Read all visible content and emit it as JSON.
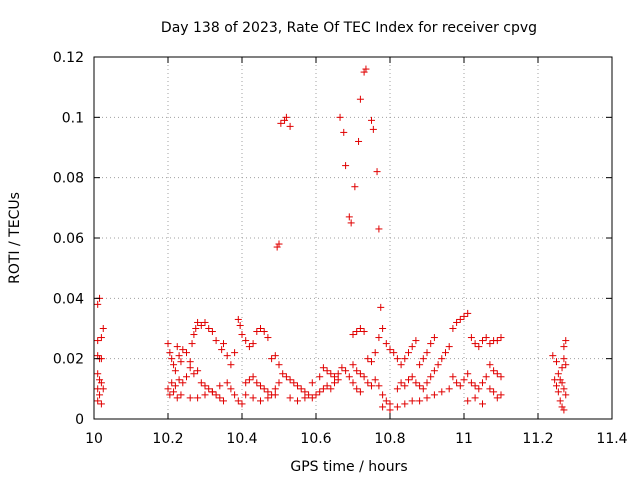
{
  "chart_data": {
    "type": "scatter",
    "title": "Day 138 of 2023, Rate Of TEC Index for receiver cpvg",
    "xlabel": "GPS time / hours",
    "ylabel": "ROTI / TECUs",
    "xlim": [
      10.0,
      11.4
    ],
    "ylim": [
      0.0,
      0.12
    ],
    "xticks": [
      "10",
      "10.2",
      "10.4",
      "10.6",
      "10.8",
      "11",
      "11.2",
      "11.4"
    ],
    "yticks": [
      "0",
      "0.02",
      "0.04",
      "0.06",
      "0.08",
      "0.1",
      "0.12"
    ],
    "grid": true,
    "marker": "+",
    "color": "#e00000",
    "points": [
      [
        10.01,
        0.038
      ],
      [
        10.015,
        0.04
      ],
      [
        10.01,
        0.026
      ],
      [
        10.02,
        0.027
      ],
      [
        10.025,
        0.03
      ],
      [
        10.01,
        0.021
      ],
      [
        10.015,
        0.02
      ],
      [
        10.02,
        0.02
      ],
      [
        10.01,
        0.015
      ],
      [
        10.015,
        0.013
      ],
      [
        10.02,
        0.012
      ],
      [
        10.01,
        0.01
      ],
      [
        10.025,
        0.01
      ],
      [
        10.015,
        0.008
      ],
      [
        10.01,
        0.006
      ],
      [
        10.02,
        0.005
      ],
      [
        10.2,
        0.025
      ],
      [
        10.205,
        0.022
      ],
      [
        10.21,
        0.02
      ],
      [
        10.215,
        0.018
      ],
      [
        10.22,
        0.016
      ],
      [
        10.225,
        0.024
      ],
      [
        10.23,
        0.021
      ],
      [
        10.235,
        0.019
      ],
      [
        10.24,
        0.023
      ],
      [
        10.25,
        0.022
      ],
      [
        10.2,
        0.01
      ],
      [
        10.21,
        0.012
      ],
      [
        10.22,
        0.011
      ],
      [
        10.23,
        0.013
      ],
      [
        10.24,
        0.012
      ],
      [
        10.25,
        0.014
      ],
      [
        10.205,
        0.008
      ],
      [
        10.215,
        0.009
      ],
      [
        10.225,
        0.007
      ],
      [
        10.235,
        0.008
      ],
      [
        10.26,
        0.017
      ],
      [
        10.265,
        0.025
      ],
      [
        10.27,
        0.028
      ],
      [
        10.275,
        0.03
      ],
      [
        10.28,
        0.032
      ],
      [
        10.29,
        0.031
      ],
      [
        10.3,
        0.032
      ],
      [
        10.31,
        0.03
      ],
      [
        10.32,
        0.029
      ],
      [
        10.33,
        0.026
      ],
      [
        10.26,
        0.019
      ],
      [
        10.27,
        0.015
      ],
      [
        10.28,
        0.016
      ],
      [
        10.29,
        0.012
      ],
      [
        10.3,
        0.011
      ],
      [
        10.31,
        0.01
      ],
      [
        10.32,
        0.009
      ],
      [
        10.33,
        0.008
      ],
      [
        10.34,
        0.007
      ],
      [
        10.35,
        0.006
      ],
      [
        10.26,
        0.007
      ],
      [
        10.28,
        0.007
      ],
      [
        10.3,
        0.008
      ],
      [
        10.32,
        0.009
      ],
      [
        10.34,
        0.011
      ],
      [
        10.36,
        0.012
      ],
      [
        10.37,
        0.01
      ],
      [
        10.38,
        0.008
      ],
      [
        10.39,
        0.006
      ],
      [
        10.4,
        0.005
      ],
      [
        10.345,
        0.023
      ],
      [
        10.35,
        0.025
      ],
      [
        10.36,
        0.021
      ],
      [
        10.37,
        0.018
      ],
      [
        10.38,
        0.022
      ],
      [
        10.39,
        0.033
      ],
      [
        10.395,
        0.031
      ],
      [
        10.4,
        0.028
      ],
      [
        10.41,
        0.026
      ],
      [
        10.42,
        0.024
      ],
      [
        10.43,
        0.025
      ],
      [
        10.44,
        0.029
      ],
      [
        10.45,
        0.03
      ],
      [
        10.46,
        0.029
      ],
      [
        10.47,
        0.027
      ],
      [
        10.41,
        0.012
      ],
      [
        10.42,
        0.013
      ],
      [
        10.43,
        0.014
      ],
      [
        10.44,
        0.012
      ],
      [
        10.45,
        0.011
      ],
      [
        10.46,
        0.01
      ],
      [
        10.47,
        0.009
      ],
      [
        10.48,
        0.008
      ],
      [
        10.49,
        0.01
      ],
      [
        10.5,
        0.012
      ],
      [
        10.41,
        0.008
      ],
      [
        10.43,
        0.007
      ],
      [
        10.45,
        0.006
      ],
      [
        10.47,
        0.007
      ],
      [
        10.49,
        0.008
      ],
      [
        10.48,
        0.02
      ],
      [
        10.49,
        0.021
      ],
      [
        10.5,
        0.018
      ],
      [
        10.51,
        0.015
      ],
      [
        10.52,
        0.014
      ],
      [
        10.495,
        0.057
      ],
      [
        10.5,
        0.058
      ],
      [
        10.505,
        0.098
      ],
      [
        10.515,
        0.099
      ],
      [
        10.52,
        0.1
      ],
      [
        10.53,
        0.097
      ],
      [
        10.53,
        0.013
      ],
      [
        10.54,
        0.012
      ],
      [
        10.55,
        0.011
      ],
      [
        10.56,
        0.01
      ],
      [
        10.57,
        0.009
      ],
      [
        10.58,
        0.008
      ],
      [
        10.59,
        0.007
      ],
      [
        10.6,
        0.008
      ],
      [
        10.61,
        0.009
      ],
      [
        10.62,
        0.01
      ],
      [
        10.53,
        0.007
      ],
      [
        10.55,
        0.006
      ],
      [
        10.57,
        0.007
      ],
      [
        10.59,
        0.012
      ],
      [
        10.61,
        0.014
      ],
      [
        10.62,
        0.017
      ],
      [
        10.63,
        0.016
      ],
      [
        10.64,
        0.015
      ],
      [
        10.65,
        0.014
      ],
      [
        10.66,
        0.013
      ],
      [
        10.63,
        0.011
      ],
      [
        10.64,
        0.01
      ],
      [
        10.65,
        0.012
      ],
      [
        10.66,
        0.015
      ],
      [
        10.67,
        0.017
      ],
      [
        10.68,
        0.016
      ],
      [
        10.69,
        0.014
      ],
      [
        10.7,
        0.012
      ],
      [
        10.71,
        0.01
      ],
      [
        10.72,
        0.009
      ],
      [
        10.665,
        0.1
      ],
      [
        10.675,
        0.095
      ],
      [
        10.68,
        0.084
      ],
      [
        10.69,
        0.067
      ],
      [
        10.695,
        0.065
      ],
      [
        10.705,
        0.077
      ],
      [
        10.715,
        0.092
      ],
      [
        10.72,
        0.106
      ],
      [
        10.73,
        0.115
      ],
      [
        10.735,
        0.116
      ],
      [
        10.75,
        0.099
      ],
      [
        10.755,
        0.096
      ],
      [
        10.765,
        0.082
      ],
      [
        10.77,
        0.063
      ],
      [
        10.7,
        0.028
      ],
      [
        10.71,
        0.029
      ],
      [
        10.72,
        0.03
      ],
      [
        10.73,
        0.029
      ],
      [
        10.7,
        0.018
      ],
      [
        10.71,
        0.016
      ],
      [
        10.72,
        0.015
      ],
      [
        10.73,
        0.014
      ],
      [
        10.74,
        0.012
      ],
      [
        10.75,
        0.011
      ],
      [
        10.76,
        0.013
      ],
      [
        10.77,
        0.011
      ],
      [
        10.78,
        0.008
      ],
      [
        10.79,
        0.006
      ],
      [
        10.8,
        0.005
      ],
      [
        10.74,
        0.02
      ],
      [
        10.75,
        0.019
      ],
      [
        10.76,
        0.022
      ],
      [
        10.77,
        0.027
      ],
      [
        10.775,
        0.037
      ],
      [
        10.78,
        0.03
      ],
      [
        10.79,
        0.025
      ],
      [
        10.8,
        0.023
      ],
      [
        10.81,
        0.022
      ],
      [
        10.82,
        0.02
      ],
      [
        10.78,
        0.004
      ],
      [
        10.8,
        0.003
      ],
      [
        10.82,
        0.004
      ],
      [
        10.84,
        0.005
      ],
      [
        10.86,
        0.006
      ],
      [
        10.82,
        0.01
      ],
      [
        10.83,
        0.012
      ],
      [
        10.84,
        0.011
      ],
      [
        10.85,
        0.013
      ],
      [
        10.86,
        0.014
      ],
      [
        10.83,
        0.018
      ],
      [
        10.84,
        0.02
      ],
      [
        10.85,
        0.022
      ],
      [
        10.86,
        0.024
      ],
      [
        10.87,
        0.026
      ],
      [
        10.87,
        0.012
      ],
      [
        10.88,
        0.011
      ],
      [
        10.89,
        0.01
      ],
      [
        10.9,
        0.012
      ],
      [
        10.91,
        0.014
      ],
      [
        10.88,
        0.018
      ],
      [
        10.89,
        0.02
      ],
      [
        10.9,
        0.022
      ],
      [
        10.91,
        0.025
      ],
      [
        10.92,
        0.027
      ],
      [
        10.88,
        0.006
      ],
      [
        10.9,
        0.007
      ],
      [
        10.92,
        0.008
      ],
      [
        10.94,
        0.009
      ],
      [
        10.96,
        0.01
      ],
      [
        10.92,
        0.016
      ],
      [
        10.93,
        0.018
      ],
      [
        10.94,
        0.02
      ],
      [
        10.95,
        0.022
      ],
      [
        10.96,
        0.024
      ],
      [
        10.97,
        0.03
      ],
      [
        10.98,
        0.032
      ],
      [
        10.99,
        0.033
      ],
      [
        11.0,
        0.034
      ],
      [
        11.01,
        0.035
      ],
      [
        10.97,
        0.014
      ],
      [
        10.98,
        0.012
      ],
      [
        10.99,
        0.011
      ],
      [
        11.0,
        0.013
      ],
      [
        11.01,
        0.015
      ],
      [
        11.02,
        0.027
      ],
      [
        11.03,
        0.025
      ],
      [
        11.04,
        0.024
      ],
      [
        11.05,
        0.026
      ],
      [
        11.06,
        0.027
      ],
      [
        11.02,
        0.012
      ],
      [
        11.03,
        0.011
      ],
      [
        11.04,
        0.01
      ],
      [
        11.05,
        0.012
      ],
      [
        11.06,
        0.014
      ],
      [
        11.07,
        0.025
      ],
      [
        11.08,
        0.026
      ],
      [
        11.09,
        0.026
      ],
      [
        11.1,
        0.027
      ],
      [
        11.07,
        0.018
      ],
      [
        11.08,
        0.016
      ],
      [
        11.09,
        0.015
      ],
      [
        11.1,
        0.014
      ],
      [
        11.07,
        0.01
      ],
      [
        11.08,
        0.009
      ],
      [
        11.09,
        0.007
      ],
      [
        11.1,
        0.008
      ],
      [
        11.01,
        0.006
      ],
      [
        11.03,
        0.007
      ],
      [
        11.05,
        0.005
      ],
      [
        11.24,
        0.021
      ],
      [
        11.25,
        0.019
      ],
      [
        11.255,
        0.015
      ],
      [
        11.26,
        0.013
      ],
      [
        11.265,
        0.012
      ],
      [
        11.27,
        0.01
      ],
      [
        11.275,
        0.008
      ],
      [
        11.26,
        0.006
      ],
      [
        11.265,
        0.004
      ],
      [
        11.27,
        0.003
      ],
      [
        11.25,
        0.011
      ],
      [
        11.255,
        0.009
      ],
      [
        11.27,
        0.024
      ],
      [
        11.275,
        0.026
      ],
      [
        11.265,
        0.017
      ],
      [
        11.245,
        0.013
      ],
      [
        11.275,
        0.018
      ],
      [
        11.27,
        0.02
      ]
    ]
  }
}
